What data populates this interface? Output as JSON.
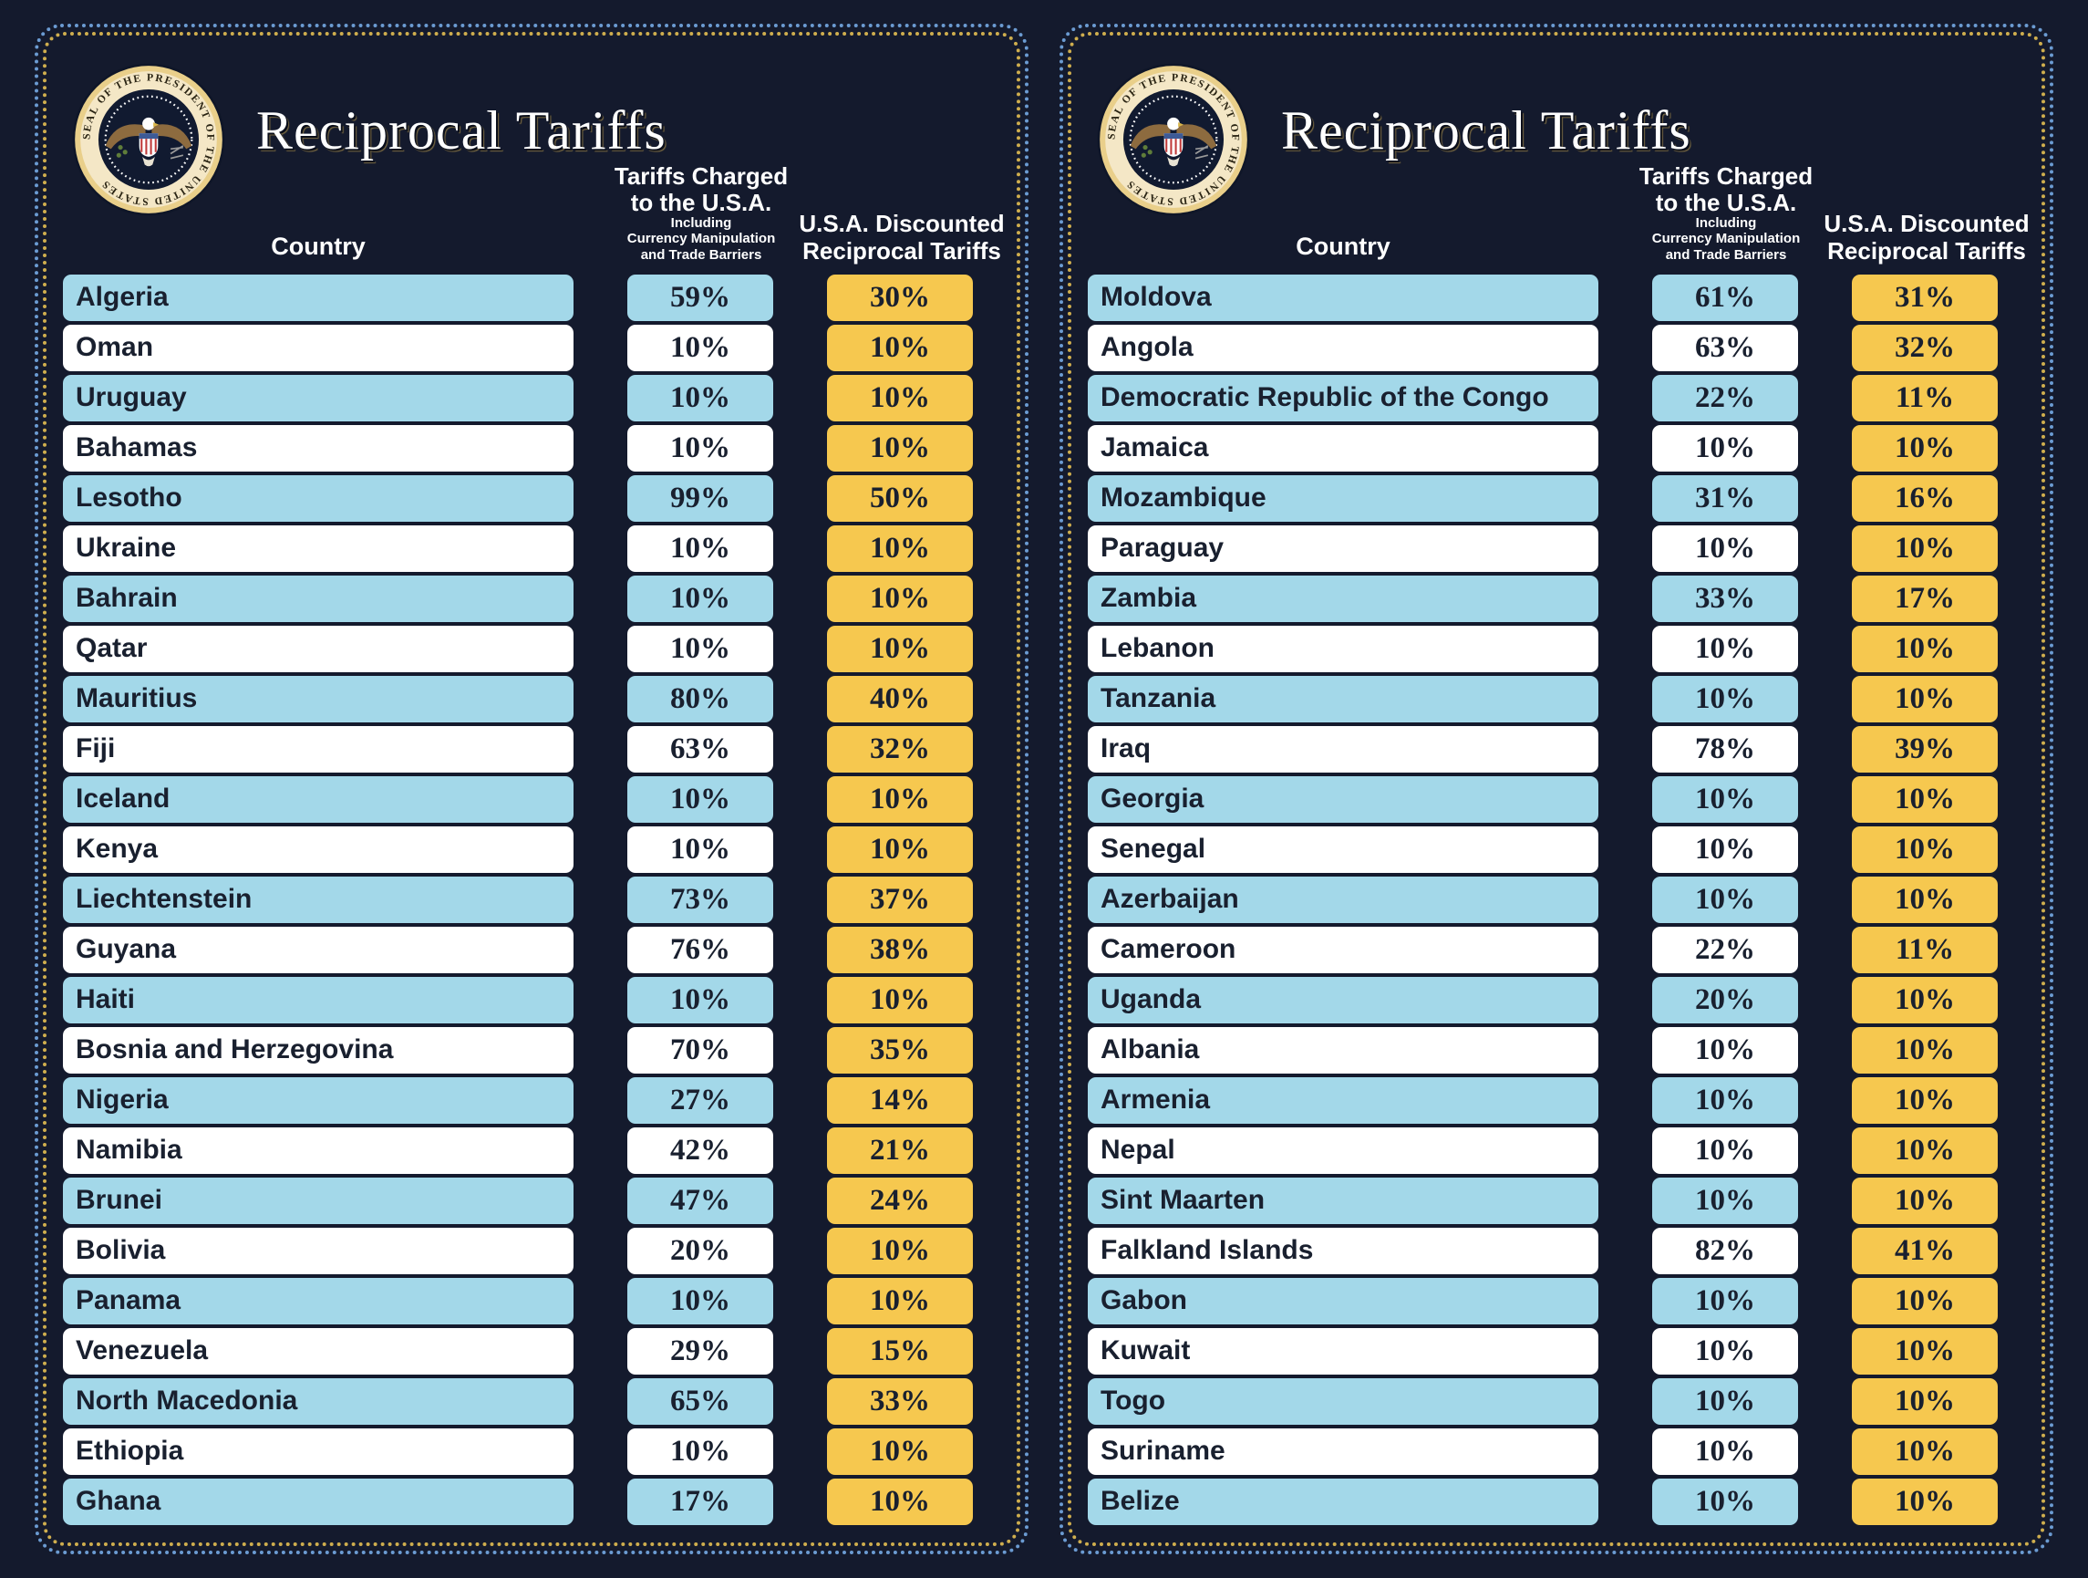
{
  "colors": {
    "background": "#141a2d",
    "row_blue": "#a3d8e9",
    "row_white": "#ffffff",
    "discounted_yellow": "#f6c84f",
    "text_dark": "#19202f",
    "border_outer_blue": "#6b9bd2",
    "border_inner_gold": "#cfae4e",
    "title_white": "#ffffff"
  },
  "panels": [
    {
      "title": "Reciprocal Tariffs",
      "seal_text": "SEAL OF THE PRESIDENT OF THE UNITED STATES",
      "country_header": "Country",
      "charged_header_line1": "Tariffs Charged",
      "charged_header_line2": "to the U.S.A.",
      "charged_sub_line1": "Including",
      "charged_sub_line2": "Currency Manipulation",
      "charged_sub_line3": "and Trade Barriers",
      "discounted_header_line1": "U.S.A. Discounted",
      "discounted_header_line2": "Reciprocal Tariffs",
      "rows": [
        {
          "country": "Algeria",
          "charged": "59%",
          "discounted": "30%"
        },
        {
          "country": "Oman",
          "charged": "10%",
          "discounted": "10%"
        },
        {
          "country": "Uruguay",
          "charged": "10%",
          "discounted": "10%"
        },
        {
          "country": "Bahamas",
          "charged": "10%",
          "discounted": "10%"
        },
        {
          "country": "Lesotho",
          "charged": "99%",
          "discounted": "50%"
        },
        {
          "country": "Ukraine",
          "charged": "10%",
          "discounted": "10%"
        },
        {
          "country": "Bahrain",
          "charged": "10%",
          "discounted": "10%"
        },
        {
          "country": "Qatar",
          "charged": "10%",
          "discounted": "10%"
        },
        {
          "country": "Mauritius",
          "charged": "80%",
          "discounted": "40%"
        },
        {
          "country": "Fiji",
          "charged": "63%",
          "discounted": "32%"
        },
        {
          "country": "Iceland",
          "charged": "10%",
          "discounted": "10%"
        },
        {
          "country": "Kenya",
          "charged": "10%",
          "discounted": "10%"
        },
        {
          "country": "Liechtenstein",
          "charged": "73%",
          "discounted": "37%"
        },
        {
          "country": "Guyana",
          "charged": "76%",
          "discounted": "38%"
        },
        {
          "country": "Haiti",
          "charged": "10%",
          "discounted": "10%"
        },
        {
          "country": "Bosnia and Herzegovina",
          "charged": "70%",
          "discounted": "35%"
        },
        {
          "country": "Nigeria",
          "charged": "27%",
          "discounted": "14%"
        },
        {
          "country": "Namibia",
          "charged": "42%",
          "discounted": "21%"
        },
        {
          "country": "Brunei",
          "charged": "47%",
          "discounted": "24%"
        },
        {
          "country": "Bolivia",
          "charged": "20%",
          "discounted": "10%"
        },
        {
          "country": "Panama",
          "charged": "10%",
          "discounted": "10%"
        },
        {
          "country": "Venezuela",
          "charged": "29%",
          "discounted": "15%"
        },
        {
          "country": "North Macedonia",
          "charged": "65%",
          "discounted": "33%"
        },
        {
          "country": "Ethiopia",
          "charged": "10%",
          "discounted": "10%"
        },
        {
          "country": "Ghana",
          "charged": "17%",
          "discounted": "10%"
        }
      ]
    },
    {
      "title": "Reciprocal Tariffs",
      "seal_text": "SEAL OF THE PRESIDENT OF THE UNITED STATES",
      "country_header": "Country",
      "charged_header_line1": "Tariffs Charged",
      "charged_header_line2": "to the U.S.A.",
      "charged_sub_line1": "Including",
      "charged_sub_line2": "Currency Manipulation",
      "charged_sub_line3": "and Trade Barriers",
      "discounted_header_line1": "U.S.A. Discounted",
      "discounted_header_line2": "Reciprocal Tariffs",
      "rows": [
        {
          "country": "Moldova",
          "charged": "61%",
          "discounted": "31%"
        },
        {
          "country": "Angola",
          "charged": "63%",
          "discounted": "32%"
        },
        {
          "country": "Democratic Republic of the Congo",
          "charged": "22%",
          "discounted": "11%"
        },
        {
          "country": "Jamaica",
          "charged": "10%",
          "discounted": "10%"
        },
        {
          "country": "Mozambique",
          "charged": "31%",
          "discounted": "16%"
        },
        {
          "country": "Paraguay",
          "charged": "10%",
          "discounted": "10%"
        },
        {
          "country": "Zambia",
          "charged": "33%",
          "discounted": "17%"
        },
        {
          "country": "Lebanon",
          "charged": "10%",
          "discounted": "10%"
        },
        {
          "country": "Tanzania",
          "charged": "10%",
          "discounted": "10%"
        },
        {
          "country": "Iraq",
          "charged": "78%",
          "discounted": "39%"
        },
        {
          "country": "Georgia",
          "charged": "10%",
          "discounted": "10%"
        },
        {
          "country": "Senegal",
          "charged": "10%",
          "discounted": "10%"
        },
        {
          "country": "Azerbaijan",
          "charged": "10%",
          "discounted": "10%"
        },
        {
          "country": "Cameroon",
          "charged": "22%",
          "discounted": "11%"
        },
        {
          "country": "Uganda",
          "charged": "20%",
          "discounted": "10%"
        },
        {
          "country": "Albania",
          "charged": "10%",
          "discounted": "10%"
        },
        {
          "country": "Armenia",
          "charged": "10%",
          "discounted": "10%"
        },
        {
          "country": "Nepal",
          "charged": "10%",
          "discounted": "10%"
        },
        {
          "country": "Sint Maarten",
          "charged": "10%",
          "discounted": "10%"
        },
        {
          "country": "Falkland Islands",
          "charged": "82%",
          "discounted": "41%"
        },
        {
          "country": "Gabon",
          "charged": "10%",
          "discounted": "10%"
        },
        {
          "country": "Kuwait",
          "charged": "10%",
          "discounted": "10%"
        },
        {
          "country": "Togo",
          "charged": "10%",
          "discounted": "10%"
        },
        {
          "country": "Suriname",
          "charged": "10%",
          "discounted": "10%"
        },
        {
          "country": "Belize",
          "charged": "10%",
          "discounted": "10%"
        }
      ]
    }
  ],
  "chart_data": [
    {
      "type": "table",
      "title": "Reciprocal Tariffs (left panel)",
      "columns": [
        "Country",
        "Tariffs Charged to the U.S.A. Including Currency Manipulation and Trade Barriers",
        "U.S.A. Discounted Reciprocal Tariffs"
      ],
      "categories": [
        "Algeria",
        "Oman",
        "Uruguay",
        "Bahamas",
        "Lesotho",
        "Ukraine",
        "Bahrain",
        "Qatar",
        "Mauritius",
        "Fiji",
        "Iceland",
        "Kenya",
        "Liechtenstein",
        "Guyana",
        "Haiti",
        "Bosnia and Herzegovina",
        "Nigeria",
        "Namibia",
        "Brunei",
        "Bolivia",
        "Panama",
        "Venezuela",
        "North Macedonia",
        "Ethiopia",
        "Ghana"
      ],
      "series": [
        {
          "name": "Tariffs Charged to the U.S.A. (%)",
          "values": [
            59,
            10,
            10,
            10,
            99,
            10,
            10,
            10,
            80,
            63,
            10,
            10,
            73,
            76,
            10,
            70,
            27,
            42,
            47,
            20,
            10,
            29,
            65,
            10,
            17
          ]
        },
        {
          "name": "U.S.A. Discounted Reciprocal Tariffs (%)",
          "values": [
            30,
            10,
            10,
            10,
            50,
            10,
            10,
            10,
            40,
            32,
            10,
            10,
            37,
            38,
            10,
            35,
            14,
            21,
            24,
            10,
            10,
            15,
            33,
            10,
            10
          ]
        }
      ]
    },
    {
      "type": "table",
      "title": "Reciprocal Tariffs (right panel)",
      "columns": [
        "Country",
        "Tariffs Charged to the U.S.A. Including Currency Manipulation and Trade Barriers",
        "U.S.A. Discounted Reciprocal Tariffs"
      ],
      "categories": [
        "Moldova",
        "Angola",
        "Democratic Republic of the Congo",
        "Jamaica",
        "Mozambique",
        "Paraguay",
        "Zambia",
        "Lebanon",
        "Tanzania",
        "Iraq",
        "Georgia",
        "Senegal",
        "Azerbaijan",
        "Cameroon",
        "Uganda",
        "Albania",
        "Armenia",
        "Nepal",
        "Sint Maarten",
        "Falkland Islands",
        "Gabon",
        "Kuwait",
        "Togo",
        "Suriname",
        "Belize"
      ],
      "series": [
        {
          "name": "Tariffs Charged to the U.S.A. (%)",
          "values": [
            61,
            63,
            22,
            10,
            31,
            10,
            33,
            10,
            10,
            78,
            10,
            10,
            10,
            22,
            20,
            10,
            10,
            10,
            10,
            82,
            10,
            10,
            10,
            10,
            10
          ]
        },
        {
          "name": "U.S.A. Discounted Reciprocal Tariffs (%)",
          "values": [
            31,
            32,
            11,
            10,
            16,
            10,
            17,
            10,
            10,
            39,
            10,
            10,
            10,
            11,
            10,
            10,
            10,
            10,
            10,
            41,
            10,
            10,
            10,
            10,
            10
          ]
        }
      ]
    }
  ]
}
